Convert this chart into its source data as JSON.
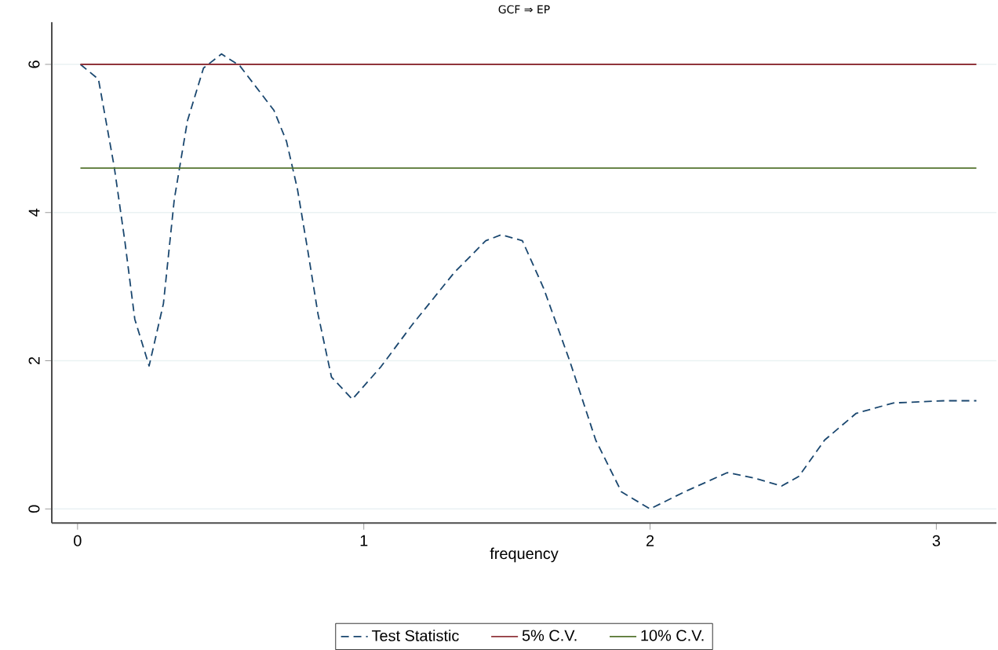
{
  "chart_data": {
    "type": "line",
    "title": "GCF ⇒ EP",
    "xlabel": "frequency",
    "xlim": [
      -0.09,
      3.21
    ],
    "ylim": [
      -0.19,
      6.57
    ],
    "xticks": [
      0,
      1,
      2,
      3
    ],
    "yticks": [
      0,
      2,
      4,
      6
    ],
    "grid": "y",
    "legend": "bottom",
    "series": [
      {
        "name": "Test Statistic",
        "color": "#1a476f",
        "line_style": "dashed",
        "x": [
          0.01,
          0.073,
          0.128,
          0.165,
          0.2,
          0.25,
          0.3,
          0.338,
          0.384,
          0.44,
          0.503,
          0.567,
          0.686,
          0.73,
          0.768,
          0.805,
          0.84,
          0.887,
          0.96,
          1.06,
          1.17,
          1.316,
          1.426,
          1.48,
          1.554,
          1.628,
          1.72,
          1.81,
          1.9,
          2.0,
          2.12,
          2.27,
          2.36,
          2.46,
          2.52,
          2.61,
          2.72,
          2.85,
          3.03,
          3.14
        ],
        "values": [
          6.0,
          5.8,
          4.62,
          3.62,
          2.56,
          1.93,
          2.77,
          4.18,
          5.24,
          5.95,
          6.14,
          5.98,
          5.38,
          4.96,
          4.32,
          3.47,
          2.63,
          1.78,
          1.48,
          1.92,
          2.49,
          3.19,
          3.62,
          3.7,
          3.62,
          2.98,
          1.99,
          0.93,
          0.23,
          0.0,
          0.23,
          0.49,
          0.42,
          0.31,
          0.44,
          0.93,
          1.29,
          1.43,
          1.46,
          1.46
        ]
      },
      {
        "name": "5% C.V.",
        "color": "#90353b",
        "line_style": "solid",
        "x": [
          0.01,
          3.14
        ],
        "values": [
          6.0,
          6.0
        ]
      },
      {
        "name": "10% C.V.",
        "color": "#55752f",
        "line_style": "solid",
        "x": [
          0.01,
          3.14
        ],
        "values": [
          4.6,
          4.6
        ]
      }
    ]
  }
}
